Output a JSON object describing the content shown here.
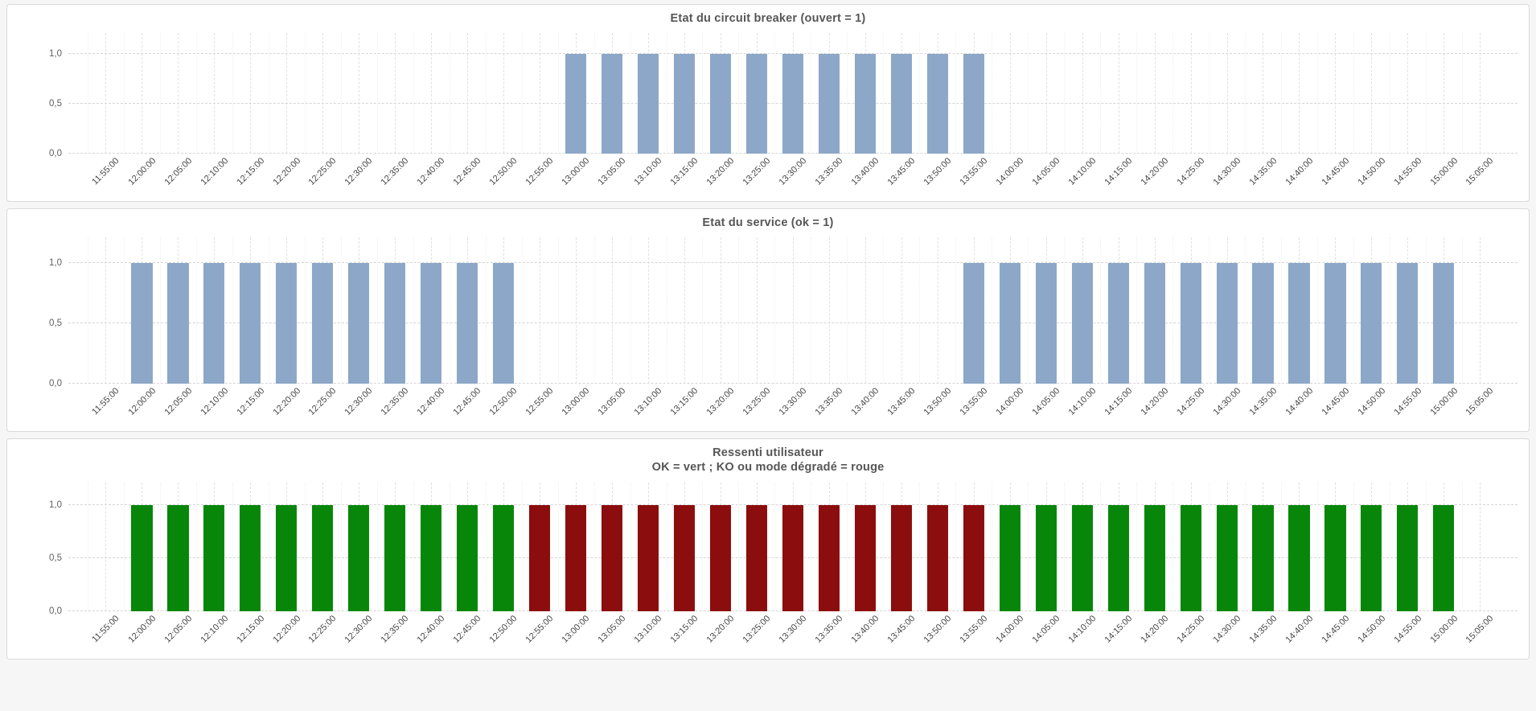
{
  "palette": {
    "blue": "#8CA7C7",
    "green": "#078609",
    "red": "#8B0D0D"
  },
  "y_axis": {
    "ticks": [
      "1,0",
      "0,5",
      "0,0"
    ]
  },
  "chart_data": [
    {
      "type": "bar",
      "title": "Etat du circuit breaker (ouvert = 1)",
      "xlabel": "",
      "ylabel": "",
      "ylim": [
        0,
        1.2
      ],
      "grid": true,
      "color": "blue",
      "categories": [
        "11:55:00",
        "12:00:00",
        "12:05:00",
        "12:10:00",
        "12:15:00",
        "12:20:00",
        "12:25:00",
        "12:30:00",
        "12:35:00",
        "12:40:00",
        "12:45:00",
        "12:50:00",
        "12:55:00",
        "13:00:00",
        "13:05:00",
        "13:10:00",
        "13:15:00",
        "13:20:00",
        "13:25:00",
        "13:30:00",
        "13:35:00",
        "13:40:00",
        "13:45:00",
        "13:50:00",
        "13:55:00",
        "14:00:00",
        "14:05:00",
        "14:10:00",
        "14:15:00",
        "14:20:00",
        "14:25:00",
        "14:30:00",
        "14:35:00",
        "14:40:00",
        "14:45:00",
        "14:50:00",
        "14:55:00",
        "15:00:00",
        "15:05:00"
      ],
      "values": [
        0,
        0,
        0,
        0,
        0,
        0,
        0,
        0,
        0,
        0,
        0,
        0,
        0,
        1,
        1,
        1,
        1,
        1,
        1,
        1,
        1,
        1,
        1,
        1,
        1,
        0,
        0,
        0,
        0,
        0,
        0,
        0,
        0,
        0,
        0,
        0,
        0,
        0,
        0
      ]
    },
    {
      "type": "bar",
      "title": "Etat du service (ok = 1)",
      "xlabel": "",
      "ylabel": "",
      "ylim": [
        0,
        1.2
      ],
      "grid": true,
      "color": "blue",
      "categories": [
        "11:55:00",
        "12:00:00",
        "12:05:00",
        "12:10:00",
        "12:15:00",
        "12:20:00",
        "12:25:00",
        "12:30:00",
        "12:35:00",
        "12:40:00",
        "12:45:00",
        "12:50:00",
        "12:55:00",
        "13:00:00",
        "13:05:00",
        "13:10:00",
        "13:15:00",
        "13:20:00",
        "13:25:00",
        "13:30:00",
        "13:35:00",
        "13:40:00",
        "13:45:00",
        "13:50:00",
        "13:55:00",
        "14:00:00",
        "14:05:00",
        "14:10:00",
        "14:15:00",
        "14:20:00",
        "14:25:00",
        "14:30:00",
        "14:35:00",
        "14:40:00",
        "14:45:00",
        "14:50:00",
        "14:55:00",
        "15:00:00",
        "15:05:00"
      ],
      "values": [
        0,
        1,
        1,
        1,
        1,
        1,
        1,
        1,
        1,
        1,
        1,
        1,
        0,
        0,
        0,
        0,
        0,
        0,
        0,
        0,
        0,
        0,
        0,
        0,
        1,
        1,
        1,
        1,
        1,
        1,
        1,
        1,
        1,
        1,
        1,
        1,
        1,
        1,
        0
      ]
    },
    {
      "type": "bar",
      "title": "Ressenti utilisateur",
      "subtitle": "OK = vert ;  KO ou mode dégradé = rouge",
      "xlabel": "",
      "ylabel": "",
      "ylim": [
        0,
        1.2
      ],
      "grid": true,
      "categories": [
        "11:55:00",
        "12:00:00",
        "12:05:00",
        "12:10:00",
        "12:15:00",
        "12:20:00",
        "12:25:00",
        "12:30:00",
        "12:35:00",
        "12:40:00",
        "12:45:00",
        "12:50:00",
        "12:55:00",
        "13:00:00",
        "13:05:00",
        "13:10:00",
        "13:15:00",
        "13:20:00",
        "13:25:00",
        "13:30:00",
        "13:35:00",
        "13:40:00",
        "13:45:00",
        "13:50:00",
        "13:55:00",
        "14:00:00",
        "14:05:00",
        "14:10:00",
        "14:15:00",
        "14:20:00",
        "14:25:00",
        "14:30:00",
        "14:35:00",
        "14:40:00",
        "14:45:00",
        "14:50:00",
        "14:55:00",
        "15:00:00",
        "15:05:00"
      ],
      "values": [
        0,
        1,
        1,
        1,
        1,
        1,
        1,
        1,
        1,
        1,
        1,
        1,
        1,
        1,
        1,
        1,
        1,
        1,
        1,
        1,
        1,
        1,
        1,
        1,
        1,
        1,
        1,
        1,
        1,
        1,
        1,
        1,
        1,
        1,
        1,
        1,
        1,
        1,
        0
      ],
      "colors": [
        "",
        "green",
        "green",
        "green",
        "green",
        "green",
        "green",
        "green",
        "green",
        "green",
        "green",
        "green",
        "red",
        "red",
        "red",
        "red",
        "red",
        "red",
        "red",
        "red",
        "red",
        "red",
        "red",
        "red",
        "red",
        "green",
        "green",
        "green",
        "green",
        "green",
        "green",
        "green",
        "green",
        "green",
        "green",
        "green",
        "green",
        "green",
        ""
      ]
    }
  ]
}
